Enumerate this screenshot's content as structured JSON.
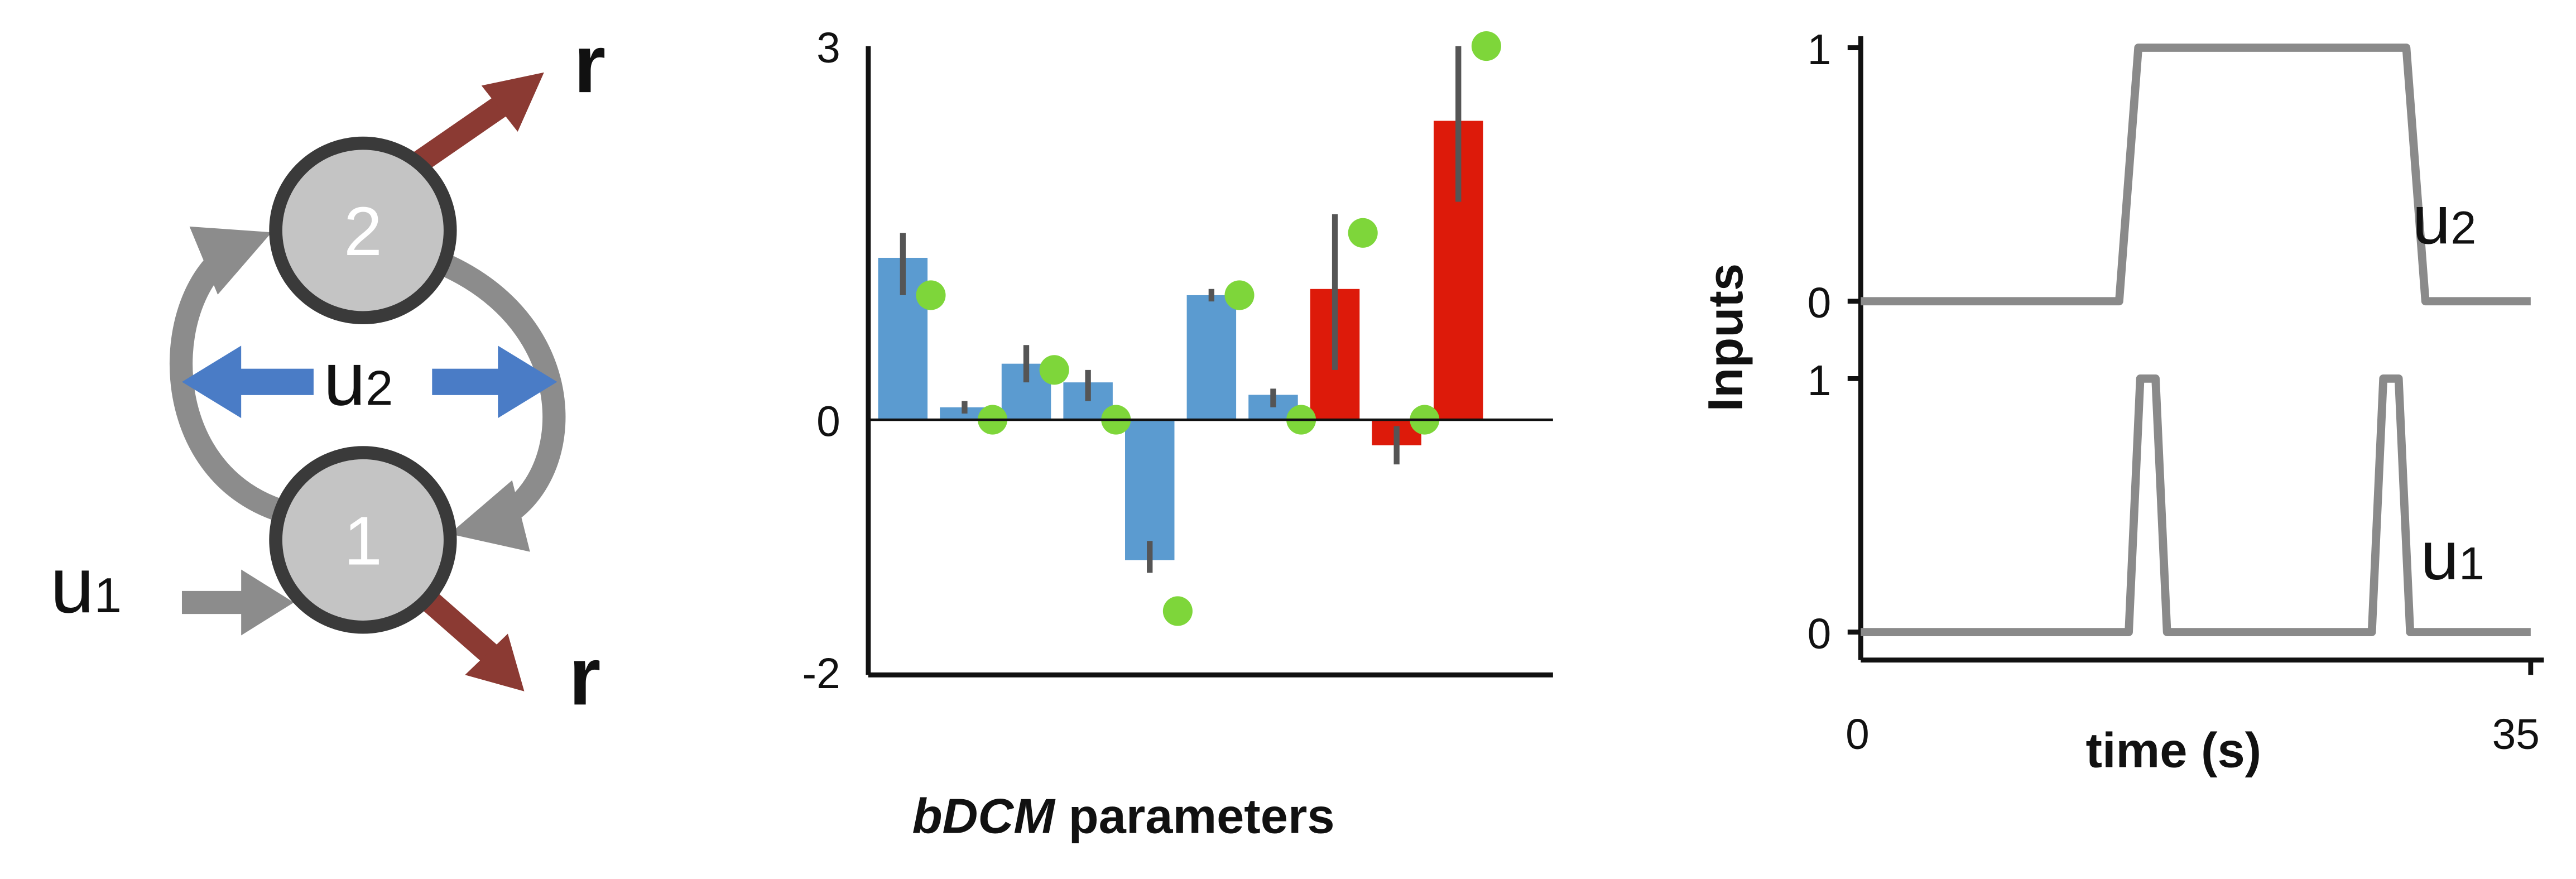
{
  "network": {
    "node_top_label": "2",
    "node_bottom_label": "1",
    "input_modulatory_label": "u",
    "input_modulatory_sub": "2",
    "input_driving_label": "u",
    "input_driving_sub": "1",
    "output_top_label": "r",
    "output_bottom_label": "r",
    "colors": {
      "node_fill": "#c4c4c4",
      "node_stroke": "#3a3a3a",
      "coupling_arrow": "#8c8c8c",
      "modulation_arrow": "#4a7cc6",
      "output_arrow": "#8b3a33"
    }
  },
  "parameters_chart": {
    "xlabel_italic": "bDCM",
    "xlabel_rest": " parameters",
    "colors": {
      "blue_bar": "#5b9bd0",
      "red_bar": "#dd1a0a",
      "dot": "#7ed63a",
      "errorbar": "#555555"
    }
  },
  "inputs_chart": {
    "ylabel": "Inputs",
    "xlabel": "time (s)",
    "x_tick_min": "0",
    "x_tick_max": "35",
    "top_panel": {
      "label": "u",
      "label_sub": "2",
      "tick_high": "1",
      "tick_low": "0"
    },
    "bottom_panel": {
      "label": "u",
      "label_sub": "1",
      "tick_high": "1",
      "tick_low": "0"
    },
    "colors": {
      "signal": "#8a8a8a"
    }
  },
  "chart_data": [
    {
      "type": "bar",
      "ylim": [
        -2,
        3
      ],
      "yticks": [
        "3",
        "0",
        "-2"
      ],
      "xlabel": "bDCM parameters",
      "series": [
        {
          "values": [
            1.3,
            0.1,
            0.45,
            0.3,
            -1.1,
            1.0,
            0.2,
            1.05,
            -0.2,
            2.4
          ],
          "colors": [
            "blue",
            "blue",
            "blue",
            "blue",
            "blue",
            "blue",
            "blue",
            "red",
            "red",
            "red"
          ],
          "error_low": [
            1.0,
            0.05,
            0.3,
            0.15,
            -1.2,
            0.95,
            0.1,
            0.4,
            -0.35,
            1.75
          ],
          "error_high": [
            1.5,
            0.15,
            0.6,
            0.4,
            -0.95,
            1.05,
            0.25,
            1.65,
            -0.05,
            3.0
          ]
        },
        {
          "values": [
            1.0,
            0.0,
            0.4,
            0.0,
            -1.5,
            1.0,
            0.0,
            1.5,
            0.0,
            3.0
          ],
          "marker": "dot"
        }
      ]
    },
    {
      "type": "line",
      "xlabel": "time (s)",
      "ylabel": "Inputs",
      "xlim": [
        0,
        35
      ],
      "series": [
        {
          "x": [
            0,
            13.5,
            14.5,
            28.5,
            29.5,
            35
          ],
          "values": [
            0,
            0,
            1,
            1,
            0,
            0
          ]
        },
        {
          "x": [
            0,
            14.0,
            14.6,
            15.4,
            16.0,
            26.7,
            27.3,
            28.1,
            28.7,
            35
          ],
          "values": [
            0,
            0,
            1,
            1,
            0,
            0,
            1,
            1,
            0,
            0
          ]
        }
      ]
    }
  ]
}
